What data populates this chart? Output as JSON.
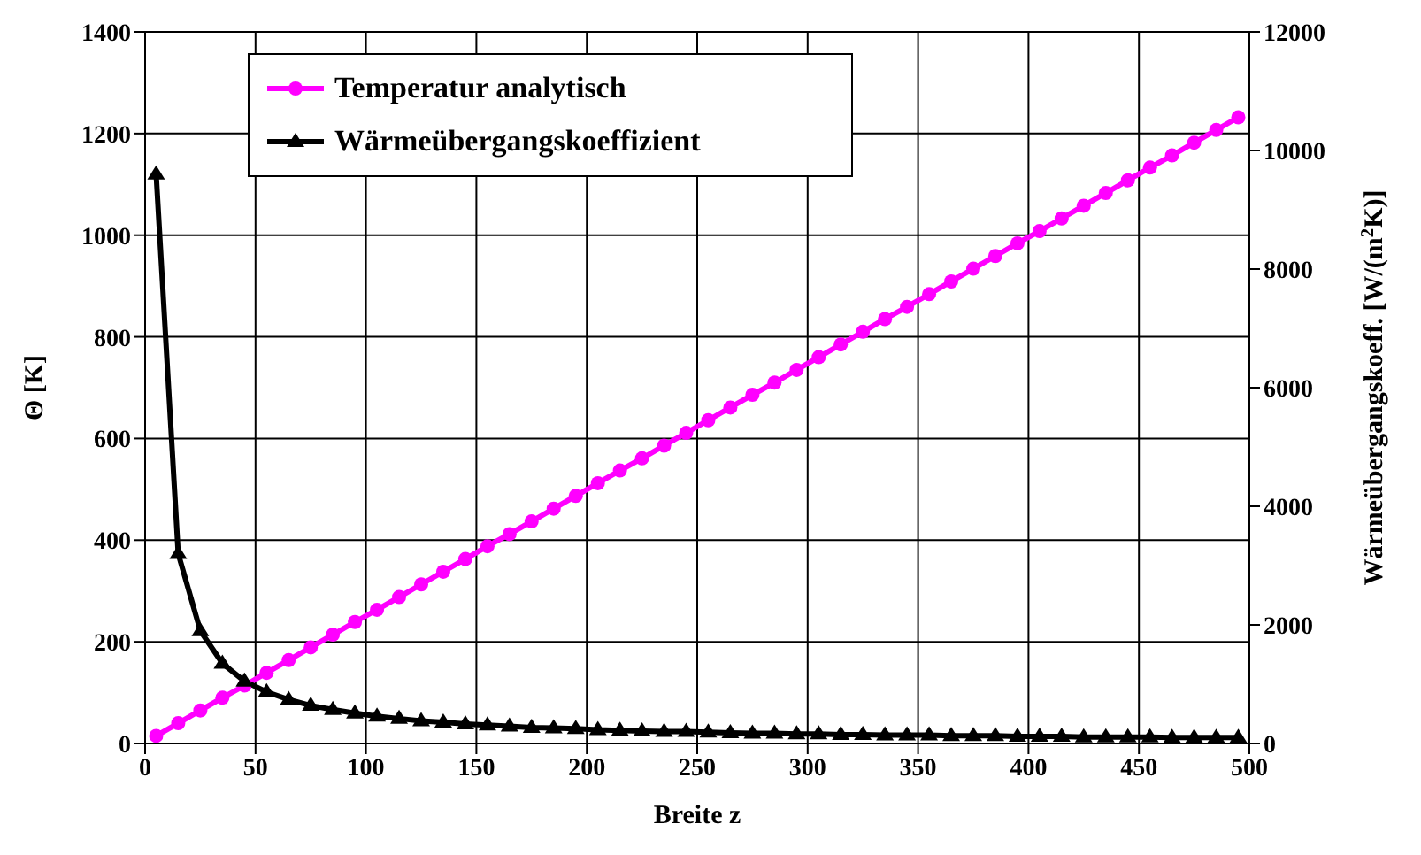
{
  "chart_data": {
    "type": "line",
    "xlabel": "Breite z",
    "ylabel": "Θ [K]",
    "y2label": "Wärmeübergangskoeff. [W/(m$^{2}$K)]",
    "x": [
      5,
      15,
      25,
      35,
      45,
      55,
      65,
      75,
      85,
      95,
      105,
      115,
      125,
      135,
      145,
      155,
      165,
      175,
      185,
      195,
      205,
      215,
      225,
      235,
      245,
      255,
      265,
      275,
      285,
      295,
      305,
      315,
      325,
      335,
      345,
      355,
      365,
      375,
      385,
      395,
      405,
      415,
      425,
      435,
      445,
      455,
      465,
      475,
      485,
      495
    ],
    "series": [
      {
        "name": "Temperatur analytisch",
        "color": "#ff00ff",
        "marker": "circle",
        "values": [
          15,
          40,
          65,
          90,
          114,
          139,
          164,
          189,
          214,
          239,
          263,
          288,
          313,
          338,
          363,
          388,
          412,
          437,
          462,
          487,
          512,
          537,
          561,
          586,
          611,
          636,
          661,
          686,
          710,
          735,
          760,
          785,
          810,
          835,
          859,
          884,
          909,
          934,
          959,
          984,
          1008,
          1033,
          1058,
          1083,
          1108,
          1133,
          1157,
          1182,
          1207,
          1232
        ]
      },
      {
        "name": "Wärmeübergangskoeffizient",
        "color": "#000000",
        "marker": "triangle",
        "axis": "y2",
        "values": [
          9600,
          3200,
          1900,
          1350,
          1050,
          870,
          740,
          640,
          570,
          510,
          460,
          420,
          380,
          360,
          330,
          310,
          290,
          270,
          260,
          250,
          230,
          220,
          210,
          200,
          200,
          190,
          180,
          170,
          170,
          160,
          160,
          150,
          150,
          140,
          140,
          140,
          130,
          130,
          130,
          120,
          120,
          120,
          110,
          110,
          110,
          110,
          100,
          100,
          100,
          100
        ]
      }
    ],
    "xlim": [
      0,
      500
    ],
    "xticks": [
      0,
      50,
      100,
      150,
      200,
      250,
      300,
      350,
      400,
      450,
      500
    ],
    "ylim": [
      0,
      1400
    ],
    "yticks": [
      0,
      200,
      400,
      600,
      800,
      1000,
      1200,
      1400
    ],
    "y2lim": [
      0,
      12000
    ],
    "y2ticks": [
      0,
      2000,
      4000,
      6000,
      8000,
      10000,
      12000
    ],
    "grid": true,
    "legend": "top left",
    "line_style": "solid"
  }
}
